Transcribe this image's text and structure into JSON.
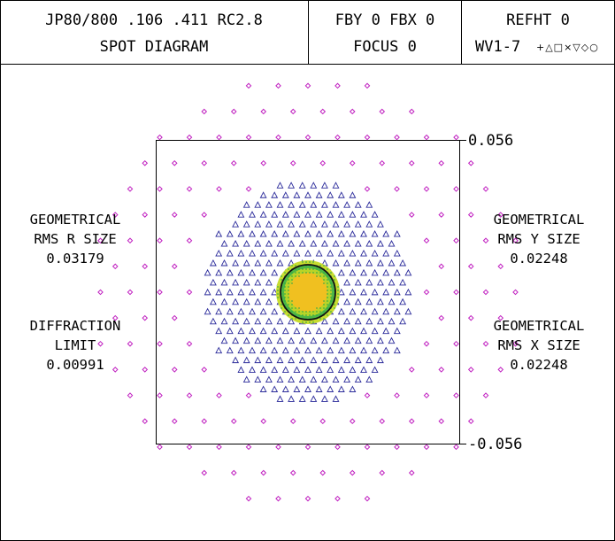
{
  "header": {
    "lens_title": "JP80/800 .106 .411 RC2.8",
    "plot_title": "SPOT DIAGRAM",
    "field": "FBY 0 FBX 0",
    "focus": "FOCUS 0",
    "reference": "REFHT 0",
    "wavelengths": "WV1-7",
    "wavelength_symbols": "+△□×▽◇○"
  },
  "scale": {
    "top_label": "0.056",
    "bottom_label": "-0.056"
  },
  "left_panel": {
    "rms_r": {
      "line1": "GEOMETRICAL",
      "line2": "RMS R SIZE",
      "value": "0.03179"
    },
    "diffraction": {
      "line1": "DIFFRACTION",
      "line2": "LIMIT",
      "value": "0.00991"
    }
  },
  "right_panel": {
    "rms_y": {
      "line1": "GEOMETRICAL",
      "line2": "RMS Y SIZE",
      "value": "0.02248"
    },
    "rms_x": {
      "line1": "GEOMETRICAL",
      "line2": "RMS X SIZE",
      "value": "0.02248"
    }
  },
  "colors": {
    "frame": "#000000",
    "diamond": "#c020c0",
    "triangle": "#2a2a9a",
    "halo": "#c8dc30",
    "green": "#2aa84a",
    "core": "#f0c020",
    "circle": "#111111"
  }
}
